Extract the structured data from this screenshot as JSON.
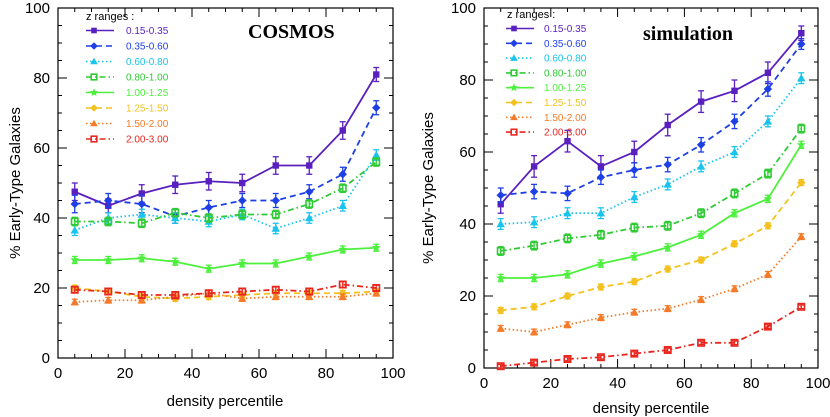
{
  "chart_data": [
    {
      "type": "line",
      "title": "COSMOS",
      "xlabel": "density percentile",
      "ylabel": "% Early-Type Galaxies",
      "xlim": [
        0,
        100
      ],
      "ylim": [
        0,
        100
      ],
      "xticks": [
        0,
        20,
        40,
        60,
        80,
        100
      ],
      "yticks": [
        0,
        20,
        40,
        60,
        80,
        100
      ],
      "legend_title": "z ranges :",
      "x": [
        5,
        15,
        25,
        35,
        45,
        55,
        65,
        75,
        85,
        95
      ],
      "series": [
        {
          "name": "0.15-0.35",
          "color": "#5a1fbf",
          "dash": "solid",
          "marker": "square",
          "values": [
            47.5,
            43.5,
            47,
            49.5,
            50.5,
            50,
            55,
            55,
            65,
            81
          ],
          "errors": [
            2.5,
            2,
            2.5,
            2.5,
            2.5,
            2.5,
            2.5,
            2.5,
            2.5,
            2
          ]
        },
        {
          "name": "0.35-0.60",
          "color": "#1f3fe6",
          "dash": "dashed",
          "marker": "diamond",
          "values": [
            44,
            45,
            44,
            40.5,
            43,
            45,
            45,
            47.5,
            52.5,
            71.5
          ],
          "errors": [
            2.5,
            2,
            2.5,
            2,
            2,
            2,
            2,
            2,
            2,
            2
          ]
        },
        {
          "name": "0.60-0.80",
          "color": "#19c3ee",
          "dash": "dotted",
          "marker": "triangle",
          "values": [
            36.5,
            40,
            41,
            40,
            39,
            41,
            37,
            40,
            43.5,
            58
          ],
          "errors": [
            1.5,
            1.5,
            1.5,
            1.5,
            1.5,
            1.5,
            1.5,
            1.5,
            1.5,
            1.5
          ]
        },
        {
          "name": "0.80-1.00",
          "color": "#2fcb34",
          "dash": "dashdot",
          "marker": "square-open",
          "values": [
            39,
            39,
            38.5,
            41.5,
            40,
            41,
            41,
            44,
            48.5,
            56
          ],
          "errors": [
            1.2,
            1.2,
            1.2,
            1.2,
            1.2,
            1.2,
            1.2,
            1.2,
            1.2,
            1.2
          ]
        },
        {
          "name": "1.00-1.25",
          "color": "#4ef03e",
          "dash": "solid",
          "marker": "star",
          "values": [
            28,
            28,
            28.5,
            27.5,
            25.5,
            27,
            27,
            29,
            31,
            31.5
          ],
          "errors": [
            1,
            1,
            1,
            1,
            1,
            1,
            1,
            1,
            1,
            1
          ]
        },
        {
          "name": "1.25-1.50",
          "color": "#f4c21e",
          "dash": "dashed",
          "marker": "diamond",
          "values": [
            20,
            19,
            17.5,
            17,
            17.5,
            18,
            18.5,
            18.5,
            18.5,
            19
          ],
          "errors": [
            0.8,
            0.8,
            0.8,
            0.8,
            0.8,
            0.8,
            0.8,
            0.8,
            0.8,
            0.8
          ]
        },
        {
          "name": "1.50-2.00",
          "color": "#f47b29",
          "dash": "dotted",
          "marker": "triangle",
          "values": [
            16,
            16.5,
            16.5,
            17.5,
            18.5,
            17,
            17.5,
            17.5,
            17.5,
            18.5
          ],
          "errors": [
            0.8,
            0.8,
            0.8,
            0.8,
            0.8,
            0.8,
            0.8,
            0.8,
            0.8,
            0.8
          ]
        },
        {
          "name": "2.00-3.00",
          "color": "#e8261e",
          "dash": "dashdot",
          "marker": "square-open",
          "values": [
            19.5,
            19,
            18,
            18,
            18.5,
            19,
            19.5,
            19,
            21,
            20
          ],
          "errors": [
            0.8,
            0.8,
            0.8,
            0.8,
            0.8,
            0.8,
            0.8,
            0.8,
            0.8,
            0.8
          ]
        }
      ]
    },
    {
      "type": "line",
      "title": "simulation",
      "xlabel": "density percentile",
      "ylabel": "% Early-Type Galaxies",
      "xlim": [
        0,
        100
      ],
      "ylim": [
        0,
        100
      ],
      "xticks": [
        0,
        20,
        40,
        60,
        80,
        100
      ],
      "yticks": [
        0,
        20,
        40,
        60,
        80,
        100
      ],
      "legend_title": "z ranges :",
      "x": [
        5,
        15,
        25,
        35,
        45,
        55,
        65,
        75,
        85,
        95
      ],
      "series": [
        {
          "name": "0.15-0.35",
          "color": "#5a1fbf",
          "dash": "solid",
          "marker": "square",
          "values": [
            45.5,
            56,
            63,
            56,
            60,
            67.5,
            74,
            77,
            82,
            93
          ],
          "errors": [
            2.5,
            3,
            3,
            3,
            3,
            3,
            3,
            3,
            3,
            2
          ]
        },
        {
          "name": "0.35-0.60",
          "color": "#1f3fe6",
          "dash": "dashed",
          "marker": "diamond",
          "values": [
            48,
            49,
            48.5,
            53,
            55,
            56.5,
            62,
            68.5,
            77.5,
            90
          ],
          "errors": [
            2,
            2,
            2,
            2,
            2,
            2,
            2,
            2,
            2,
            1.5
          ]
        },
        {
          "name": "0.60-0.80",
          "color": "#19c3ee",
          "dash": "dotted",
          "marker": "triangle",
          "values": [
            40,
            40.5,
            43,
            43,
            47.5,
            51,
            56,
            60,
            68.5,
            80.5
          ],
          "errors": [
            1.5,
            1.5,
            1.5,
            1.5,
            1.5,
            1.5,
            1.5,
            1.5,
            1.5,
            1.5
          ]
        },
        {
          "name": "0.80-1.00",
          "color": "#2fcb34",
          "dash": "dashdot",
          "marker": "square-open",
          "values": [
            32.5,
            34,
            36,
            37,
            39,
            39.5,
            43,
            48.5,
            54,
            66.5
          ],
          "errors": [
            1.2,
            1.2,
            1.2,
            1.2,
            1.2,
            1.2,
            1.2,
            1.2,
            1.2,
            1.2
          ]
        },
        {
          "name": "1.00-1.25",
          "color": "#4ef03e",
          "dash": "solid",
          "marker": "star",
          "values": [
            25,
            25,
            26,
            29,
            31,
            33.5,
            37,
            43,
            47,
            62
          ],
          "errors": [
            1,
            1,
            1,
            1,
            1,
            1,
            1,
            1,
            1,
            1
          ]
        },
        {
          "name": "1.25-1.50",
          "color": "#f4c21e",
          "dash": "dashed",
          "marker": "diamond",
          "values": [
            16,
            17,
            20,
            22.5,
            24,
            27.5,
            30,
            34.5,
            39.5,
            51.5
          ],
          "errors": [
            0.8,
            0.8,
            0.8,
            0.8,
            0.8,
            0.8,
            0.8,
            0.8,
            0.8,
            0.8
          ]
        },
        {
          "name": "1.50-2.00",
          "color": "#f47b29",
          "dash": "dotted",
          "marker": "triangle",
          "values": [
            11,
            10,
            12,
            14,
            15.5,
            16.5,
            19,
            22,
            26,
            36.5
          ],
          "errors": [
            0.8,
            0.8,
            0.8,
            0.8,
            0.8,
            0.8,
            0.8,
            0.8,
            0.8,
            0.8
          ]
        },
        {
          "name": "2.00-3.00",
          "color": "#e8261e",
          "dash": "dashdot",
          "marker": "square-open",
          "values": [
            0.5,
            1.5,
            2.5,
            3,
            4,
            5,
            7,
            7,
            11.5,
            17
          ],
          "errors": [
            0.5,
            0.5,
            0.5,
            0.5,
            0.5,
            0.5,
            0.5,
            0.5,
            0.5,
            0.5
          ]
        }
      ]
    }
  ]
}
